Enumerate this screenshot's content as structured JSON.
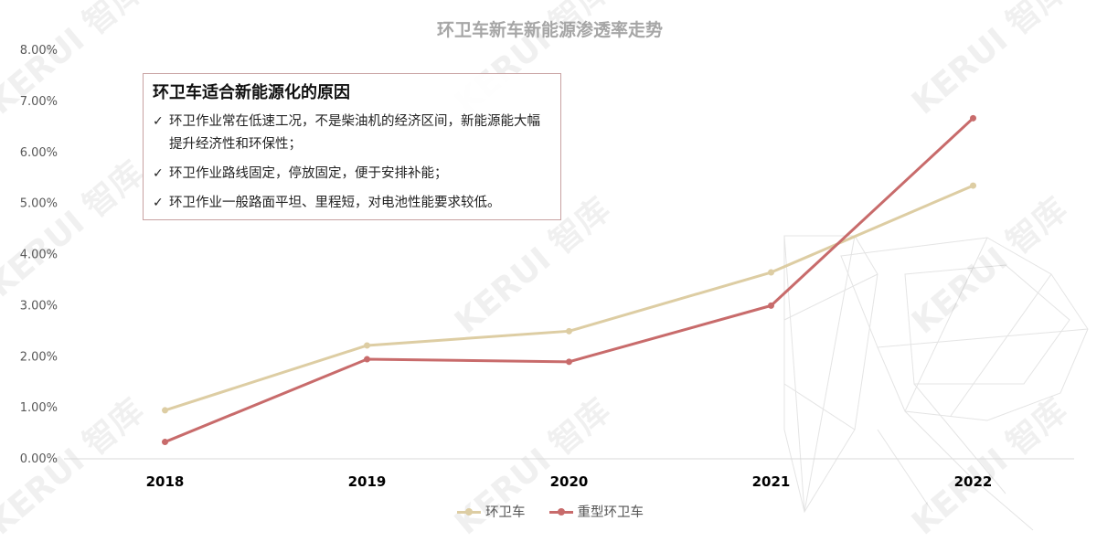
{
  "chart_data": {
    "type": "line",
    "title": "环卫车新车新能源渗透率走势",
    "categories": [
      "2018",
      "2019",
      "2020",
      "2021",
      "2022"
    ],
    "series": [
      {
        "name": "环卫车",
        "color": "#ddcda3",
        "values": [
          0.0095,
          0.0222,
          0.025,
          0.0365,
          0.0535
        ]
      },
      {
        "name": "重型环卫车",
        "color": "#c86b6b",
        "values": [
          0.0033,
          0.0195,
          0.019,
          0.03,
          0.0667
        ]
      }
    ],
    "ylim": [
      0,
      0.08
    ],
    "yticks": [
      "0.00%",
      "1.00%",
      "2.00%",
      "3.00%",
      "4.00%",
      "5.00%",
      "6.00%",
      "7.00%",
      "8.00%"
    ],
    "xlabel": "",
    "ylabel": "",
    "grid": false,
    "legend_position": "bottom"
  },
  "callout": {
    "title": "环卫车适合新能源化的原因",
    "check_symbol": "✓",
    "items": [
      "环卫作业常在低速工况，不是柴油机的经济区间，新能源能大幅提升经济性和环保性；",
      "环卫作业路线固定，停放固定，便于安排补能；",
      "环卫作业一般路面平坦、里程短，对电池性能要求较低。"
    ]
  },
  "watermark": {
    "text": "KERUI 智库"
  }
}
